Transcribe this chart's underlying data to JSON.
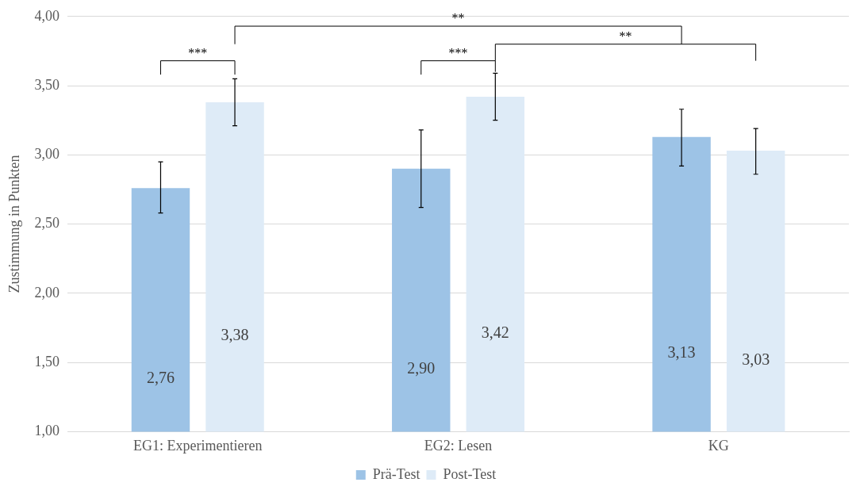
{
  "chart_data": {
    "type": "bar",
    "ylabel": "Zustimmung in Punkten",
    "categories": [
      "EG1: Experimentieren",
      "EG2: Lesen",
      "KG"
    ],
    "series": [
      {
        "name": "Prä-Test",
        "color": "#9dc3e6",
        "values": [
          2.76,
          2.9,
          3.13
        ],
        "value_labels": [
          "2,76",
          "2,90",
          "3,13"
        ],
        "errors": [
          [
            2.58,
            2.95
          ],
          [
            2.62,
            3.18
          ],
          [
            2.92,
            3.33
          ]
        ]
      },
      {
        "name": "Post-Test",
        "color": "#deebf7",
        "values": [
          3.38,
          3.42,
          3.03
        ],
        "value_labels": [
          "3,38",
          "3,42",
          "3,03"
        ],
        "errors": [
          [
            3.21,
            3.55
          ],
          [
            3.25,
            3.59
          ],
          [
            2.86,
            3.19
          ]
        ]
      }
    ],
    "ylim": [
      1,
      4
    ],
    "yticks": [
      {
        "value": 1,
        "label": "1,00"
      },
      {
        "value": 1.5,
        "label": "1,50"
      },
      {
        "value": 2,
        "label": "2,00"
      },
      {
        "value": 2.5,
        "label": "2,50"
      },
      {
        "value": 3,
        "label": "3,00"
      },
      {
        "value": 3.5,
        "label": "3,50"
      },
      {
        "value": 4,
        "label": "4,00"
      }
    ],
    "grid": "y",
    "legend": "bottom",
    "annotations": [
      "***",
      "***",
      "**",
      "**"
    ]
  }
}
